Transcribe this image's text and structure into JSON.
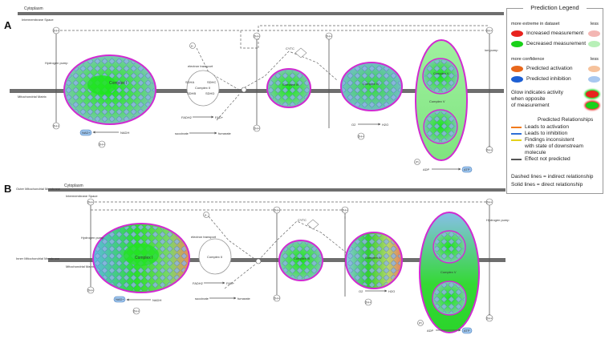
{
  "panel_a": {
    "label": "A",
    "cytoplasm": "Cytoplasm",
    "intermembrane": "Intermembrane Space",
    "matrix": "Mitochondrial Matrix",
    "hydrogen_pump": "Hydrogen pump",
    "electron_transport": "electron transport",
    "ion_pump": "ion pump",
    "complex_i": "Complex I",
    "complex_ii_members": [
      "SDHA",
      "SDHB",
      "SDHC",
      "SDHD"
    ],
    "complex_ii": "Complex II",
    "complex_iii": "Complex III",
    "complex_iv": "Complex IV",
    "complex_v": "Complex V",
    "cytc": "CYTC",
    "fadh2": "FADH2",
    "fad": "FAD+",
    "succinate": "succinate",
    "fumarate": "fumarate",
    "nadh": "NADH",
    "nad": "NAD+",
    "o2": "O2",
    "h2o": "H2O",
    "adp": "ADP",
    "atp": "ATP",
    "pi": "Pi",
    "hplus": "2H+",
    "eminus": "e-"
  },
  "panel_b": {
    "label": "B",
    "cytoplasm": "Cytoplasm",
    "outer_membrane": "Outer Mitochondrial Membrane",
    "intermembrane": "Intermembrane Space",
    "inner_membrane": "Inner Mitochondrial Membrane",
    "matrix": "Mitochondrial Matrix",
    "hydrogen_pump_left": "Hydrogen pump",
    "hydrogen_pump_right": "Hydrogen pump",
    "electron_transport": "electron transport",
    "complex_i": "Complex I",
    "complex_ii": "Complex II",
    "complex_iii": "Complex III",
    "complex_iv": "Complex IV",
    "complex_v": "Complex V",
    "cytc": "CYTC",
    "fadh2": "FADH2",
    "fad": "FAD+",
    "succinate": "succinate",
    "fumarate": "fumarate",
    "nadh": "NADH",
    "nad": "NAD+",
    "o2": "O2",
    "h2o": "H2O",
    "adp": "ADP",
    "atp": "ATP",
    "pi": "Pi",
    "hplus": "2H+",
    "eminus": "e-"
  },
  "legend": {
    "title": "Prediction Legend",
    "more_extreme": "more extreme in dataset",
    "less1": "less",
    "increased": "Increased measurement",
    "decreased": "Decreased measurement",
    "more_confidence": "more confidence",
    "less2": "less",
    "pred_activation": "Predicted activation",
    "pred_inhibition": "Predicted inhibition",
    "glow1": "Glow indicates activity",
    "glow2": "when opposite",
    "glow3": "of measurement",
    "pred_rel": "Predicted Relationships",
    "leads_activation": "Leads to activation",
    "leads_inhibition": "Leads to inhibition",
    "findings1": "Findings inconsistent",
    "findings2": "with state of downstream",
    "findings3": "molecule",
    "effect_not": "Effect not predicted",
    "dashed": "Dashed lines = indirect relationship",
    "solid": "Solid lines = direct relationship",
    "colors": {
      "increased_dark": "#e8231e",
      "increased_light": "#f3b6b3",
      "decreased_dark": "#19d119",
      "decreased_light": "#b8f0b8",
      "activation_dark": "#e8671b",
      "activation_light": "#f6c29c",
      "inhibition_dark": "#1d5fd3",
      "inhibition_light": "#a8c8f0",
      "line_activation": "#f07b1c",
      "line_inhibition": "#2f6fd6",
      "line_inconsistent": "#e4d11b",
      "line_not_predicted": "#555555"
    }
  }
}
